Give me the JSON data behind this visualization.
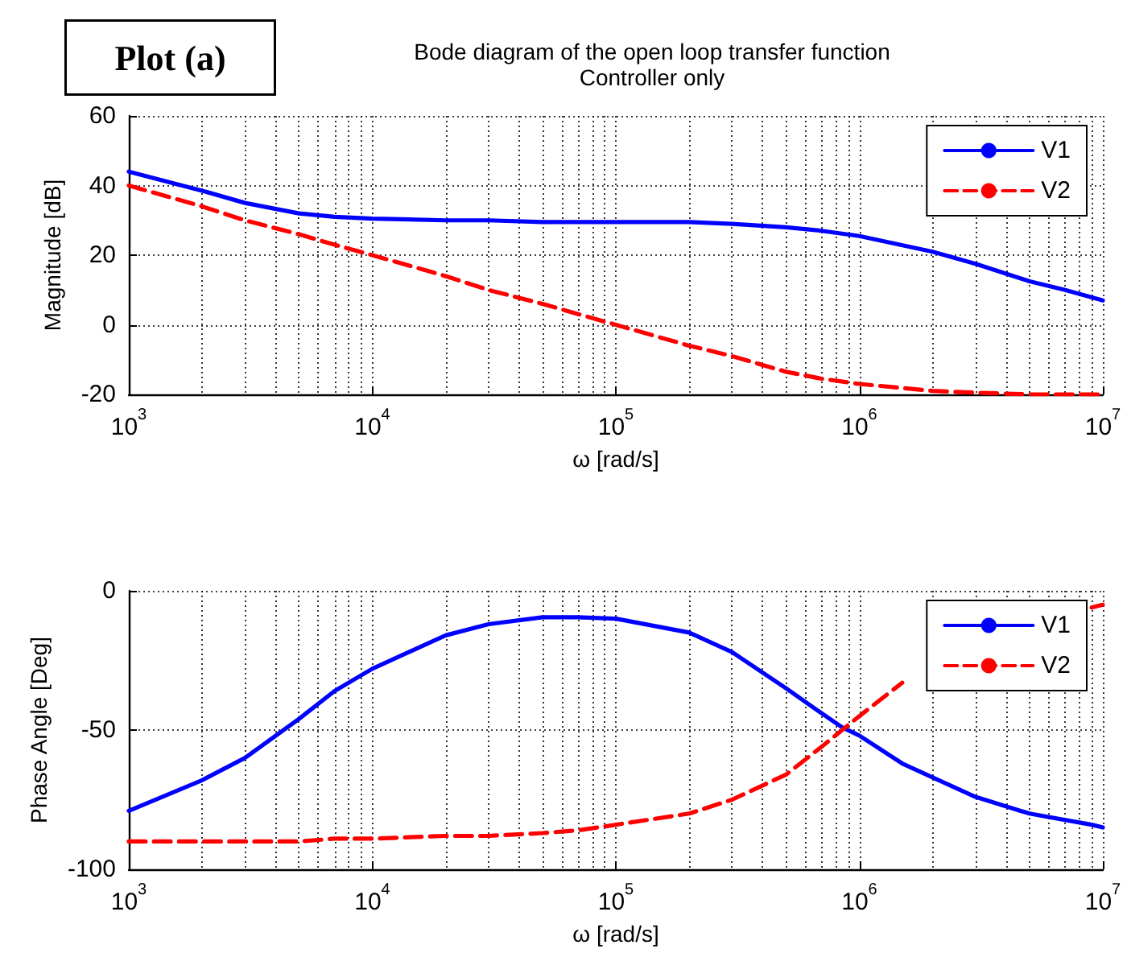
{
  "chart_data": [
    {
      "type": "line",
      "title": "Bode diagram of the open loop transfer function",
      "subtitle": "Controller only",
      "annotations": [
        "Plot (a)"
      ],
      "xlabel": "ω [rad/s]",
      "ylabel": "Magnitude [dB]",
      "log": "x",
      "grid": true,
      "legend": "top right",
      "marker": "none",
      "x": [
        1000,
        2000,
        3000,
        5000,
        7000,
        10000,
        20000,
        30000,
        50000,
        100000,
        200000,
        300000,
        500000,
        700000,
        1000000,
        2000000,
        3000000,
        5000000,
        7000000,
        10000000
      ],
      "xlim": [
        1000,
        10000000
      ],
      "xticks": [
        {
          "value": 1000,
          "label": "10$^{3}$"
        },
        {
          "value": 10000,
          "label": "10$^{4}$"
        },
        {
          "value": 100000,
          "label": "10$^{5}$"
        },
        {
          "value": 1000000,
          "label": "10$^{6}$"
        },
        {
          "value": 10000000,
          "label": "10$^{7}$"
        }
      ],
      "ylim": [
        -20,
        60
      ],
      "yticks": [
        -20,
        0,
        20,
        40,
        60
      ],
      "series": [
        {
          "name": "V1",
          "color": "#0000ff",
          "line_style": "solid",
          "values": [
            44,
            38.5,
            35,
            32,
            31,
            30.5,
            30,
            30,
            29.5,
            29.5,
            29.5,
            29,
            28,
            27,
            25.5,
            21,
            17.5,
            12.5,
            10,
            7
          ]
        },
        {
          "name": "V2",
          "color": "#ff0000",
          "line_style": "dashed",
          "values": [
            40,
            34,
            30,
            26,
            23,
            20,
            14,
            10,
            6,
            0,
            -6,
            -9,
            -13.5,
            -15.5,
            -17,
            -19,
            -19.5,
            -20,
            -20,
            -20
          ]
        }
      ]
    },
    {
      "type": "line",
      "xlabel": "ω [rad/s]",
      "ylabel": "Phase Angle [Deg]",
      "log": "x",
      "grid": true,
      "legend": "top right",
      "marker": "none",
      "x": [
        1000,
        2000,
        3000,
        5000,
        7000,
        10000,
        20000,
        30000,
        50000,
        70000,
        100000,
        200000,
        300000,
        500000,
        700000,
        850000,
        1000000,
        1500000,
        2000000,
        3000000,
        5000000,
        9000000,
        10000000
      ],
      "xlim": [
        1000,
        10000000
      ],
      "xticks": [
        {
          "value": 1000,
          "label": "10$^{3}$"
        },
        {
          "value": 10000,
          "label": "10$^{4}$"
        },
        {
          "value": 100000,
          "label": "10$^{5}$"
        },
        {
          "value": 1000000,
          "label": "10$^{6}$"
        },
        {
          "value": 10000000,
          "label": "10$^{7}$"
        }
      ],
      "ylim": [
        -100,
        0
      ],
      "yticks": [
        -100,
        -50,
        0
      ],
      "series": [
        {
          "name": "V1",
          "color": "#0000ff",
          "line_style": "solid",
          "values": [
            -79,
            -68,
            -60,
            -46,
            -36,
            -28,
            -16,
            -12,
            -9.5,
            -9.5,
            -10,
            -15,
            -22,
            -35,
            -44,
            -49,
            -52,
            -62,
            -67,
            -74,
            -80,
            -84,
            -85
          ]
        },
        {
          "name": "V2",
          "color": "#ff0000",
          "line_style": "dashed",
          "values": [
            -90,
            -90,
            -90,
            -90,
            -89,
            -89,
            -88,
            -88,
            -87,
            -86,
            -84,
            -80,
            -75,
            -66,
            -56,
            -50,
            -45,
            -33,
            null,
            null,
            null,
            -6,
            -5
          ]
        }
      ]
    }
  ]
}
